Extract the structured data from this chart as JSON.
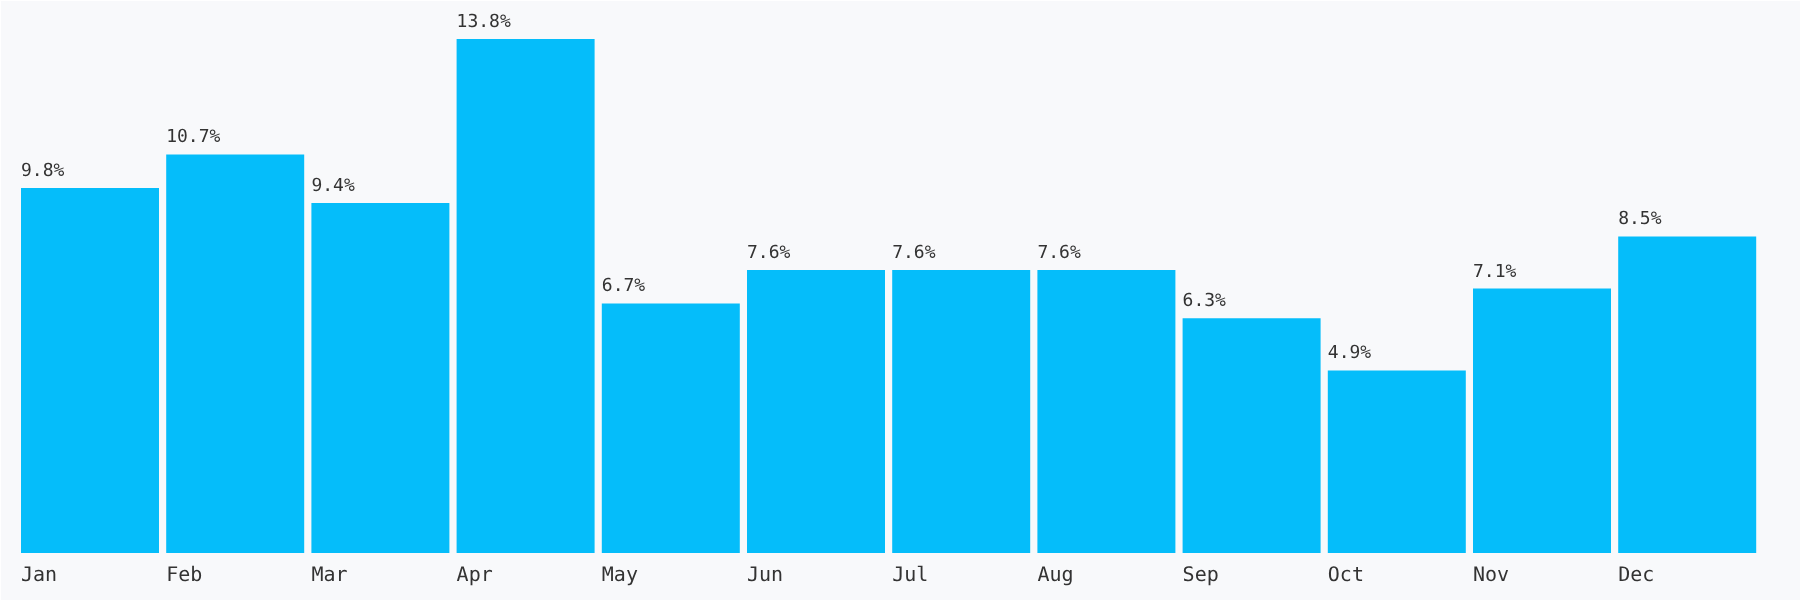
{
  "chart_data": {
    "type": "bar",
    "categories": [
      "Jan",
      "Feb",
      "Mar",
      "Apr",
      "May",
      "Jun",
      "Jul",
      "Aug",
      "Sep",
      "Oct",
      "Nov",
      "Dec"
    ],
    "values": [
      9.8,
      10.7,
      9.4,
      13.8,
      6.7,
      7.6,
      7.6,
      7.6,
      6.3,
      4.9,
      7.1,
      8.5
    ],
    "value_labels": [
      "9.8%",
      "10.7%",
      "9.4%",
      "13.8%",
      "6.7%",
      "7.6%",
      "7.6%",
      "7.6%",
      "6.3%",
      "4.9%",
      "7.1%",
      "8.5%"
    ],
    "color": "#05bdfa"
  }
}
